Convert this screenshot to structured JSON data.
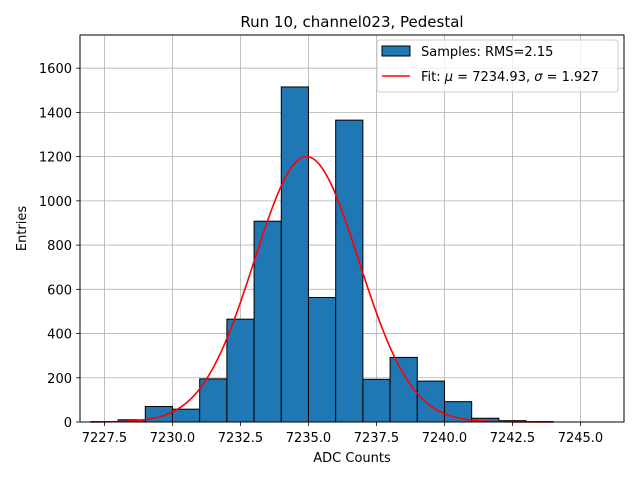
{
  "chart_data": {
    "type": "bar",
    "title": "Run 10, channel023, Pedestal",
    "xlabel": "ADC Counts",
    "ylabel": "Entries",
    "xlim": [
      7226.6,
      7246.6
    ],
    "ylim": [
      0,
      1750
    ],
    "xticks": [
      7227.5,
      7230.0,
      7232.5,
      7235.0,
      7237.5,
      7240.0,
      7242.5,
      7245.0
    ],
    "xtick_labels": [
      "7227.5",
      "7230.0",
      "7232.5",
      "7235.0",
      "7237.5",
      "7240.0",
      "7242.5",
      "7245.0"
    ],
    "yticks": [
      0,
      200,
      400,
      600,
      800,
      1000,
      1200,
      1400,
      1600
    ],
    "ytick_labels": [
      "0",
      "200",
      "400",
      "600",
      "800",
      "1000",
      "1200",
      "1400",
      "1600"
    ],
    "grid": true,
    "legend_position": "top-right",
    "histogram": {
      "name": "Samples: RMS=2.15",
      "color": "#1f77b4",
      "edge_color": "#000000",
      "bins": [
        {
          "x0": 7227,
          "x1": 7228,
          "value": 2
        },
        {
          "x0": 7228,
          "x1": 7229,
          "value": 10
        },
        {
          "x0": 7229,
          "x1": 7230,
          "value": 70
        },
        {
          "x0": 7230,
          "x1": 7231,
          "value": 58
        },
        {
          "x0": 7231,
          "x1": 7232,
          "value": 195
        },
        {
          "x0": 7232,
          "x1": 7233,
          "value": 465
        },
        {
          "x0": 7233,
          "x1": 7234,
          "value": 908
        },
        {
          "x0": 7234,
          "x1": 7235,
          "value": 1515
        },
        {
          "x0": 7235,
          "x1": 7236,
          "value": 563
        },
        {
          "x0": 7236,
          "x1": 7237,
          "value": 1365
        },
        {
          "x0": 7237,
          "x1": 7238,
          "value": 193
        },
        {
          "x0": 7238,
          "x1": 7239,
          "value": 292
        },
        {
          "x0": 7239,
          "x1": 7240,
          "value": 185
        },
        {
          "x0": 7240,
          "x1": 7241,
          "value": 92
        },
        {
          "x0": 7241,
          "x1": 7242,
          "value": 17
        },
        {
          "x0": 7242,
          "x1": 7243,
          "value": 6
        },
        {
          "x0": 7243,
          "x1": 7244,
          "value": 2
        }
      ]
    },
    "fit": {
      "name_prefix": "Fit: ",
      "name_mu": "μ",
      "name_mu_value": " = 7234.93, ",
      "name_sigma": "σ",
      "name_sigma_value": " = 1.927",
      "color": "#ff0000",
      "type": "gaussian",
      "mu": 7234.93,
      "sigma": 1.927,
      "amplitude": 1200,
      "x_range": [
        7227.0,
        7244.0
      ]
    }
  }
}
